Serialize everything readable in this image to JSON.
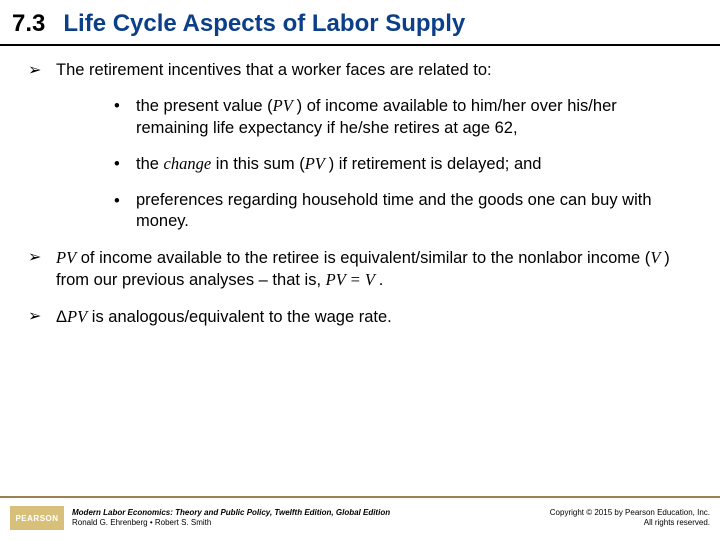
{
  "header": {
    "number": "7.3",
    "title": "Life Cycle Aspects of Labor Supply",
    "title_color": "#0b3f8a",
    "rule_color": "#000000"
  },
  "bullets": {
    "b1": "The retirement incentives that a worker faces are related to:",
    "b1a_pre": "the present value (",
    "b1a_pv": "PV ",
    "b1a_post": ") of income available to him/her over his/her remaining life expectancy if he/she retires at age 62,",
    "b1b_pre": "the ",
    "b1b_change": "change",
    "b1b_mid": " in this sum (",
    "b1b_pv": "PV ",
    "b1b_post": ") if retirement is delayed; and",
    "b1c": "preferences regarding household time and the goods one can buy with money.",
    "b2_pv1": "PV",
    "b2_mid": " of income available to the retiree is equivalent/similar to the nonlabor income (",
    "b2_v": "V ",
    "b2_post": ") from our previous analyses – that is, ",
    "b2_eq": "PV = V ",
    "b2_dot": ".",
    "b3_pre": "Δ",
    "b3_pv": "PV",
    "b3_post": " is analogous/equivalent to the wage rate."
  },
  "footer": {
    "logo_text": "PEARSON",
    "book_title": "Modern Labor Economics: Theory and Public Policy, Twelfth Edition, Global Edition",
    "authors": "Ronald G. Ehrenberg • Robert S. Smith",
    "copyright_line1": "Copyright © 2015 by Pearson Education, Inc.",
    "copyright_line2": "All rights reserved.",
    "rule_color": "#9a8250",
    "logo_bg": "#d9c07a"
  }
}
